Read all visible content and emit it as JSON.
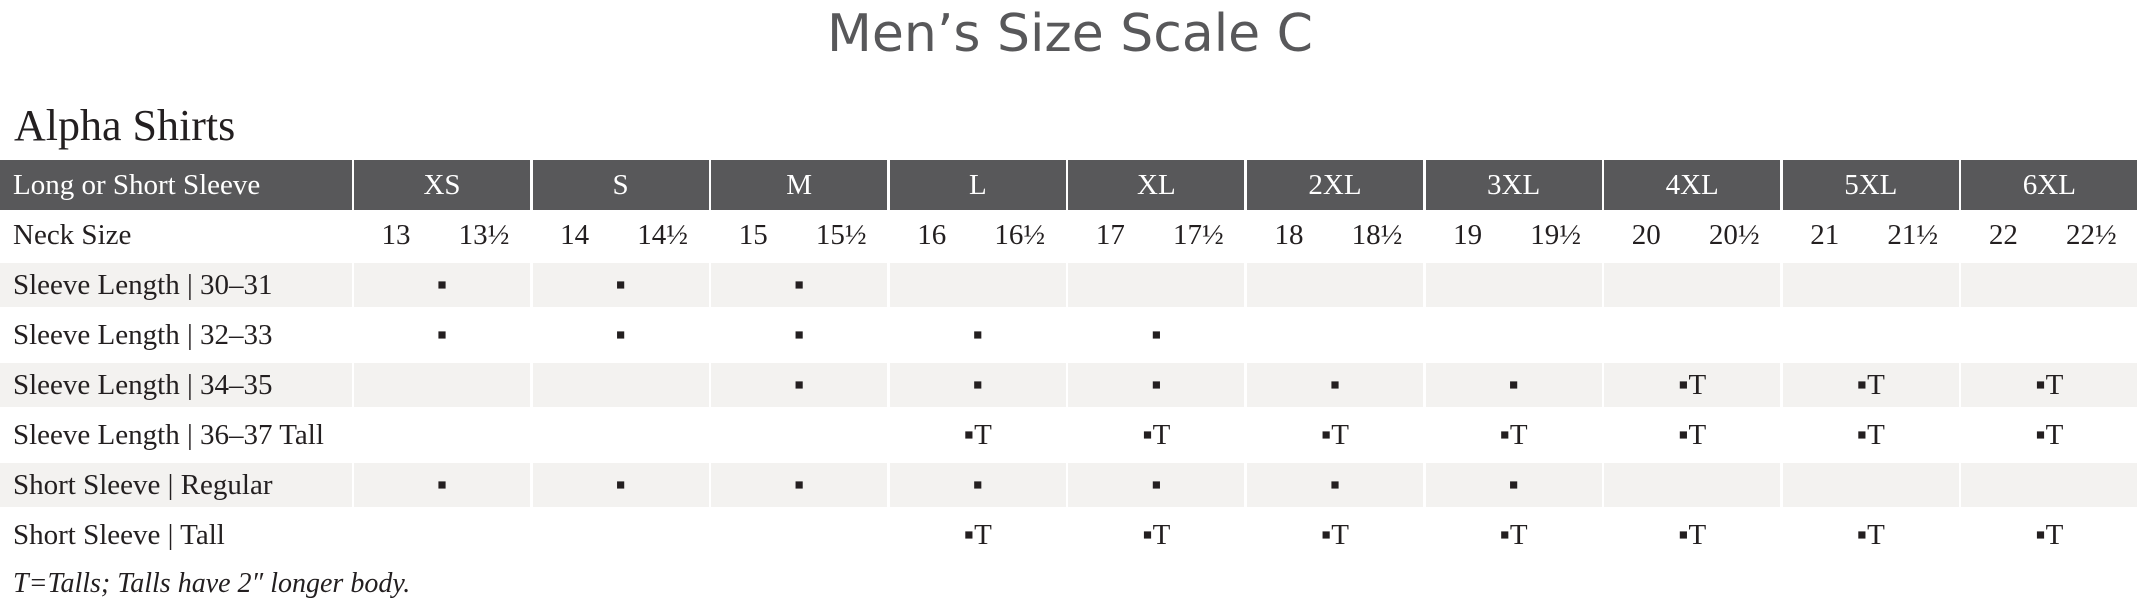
{
  "header": {
    "title": "Men’s Size Scale C"
  },
  "table": {
    "subtitle": "Alpha Shirts",
    "columns": [
      "Long or Short Sleeve",
      "XS",
      "S",
      "M",
      "L",
      "XL",
      "2XL",
      "3XL",
      "4XL",
      "5XL",
      "6XL"
    ],
    "neck": {
      "label": "Neck Size",
      "sizes": [
        [
          "13",
          "13½"
        ],
        [
          "14",
          "14½"
        ],
        [
          "15",
          "15½"
        ],
        [
          "16",
          "16½"
        ],
        [
          "17",
          "17½"
        ],
        [
          "18",
          "18½"
        ],
        [
          "19",
          "19½"
        ],
        [
          "20",
          "20½"
        ],
        [
          "21",
          "21½"
        ],
        [
          "22",
          "22½"
        ]
      ]
    },
    "rows": [
      {
        "label": "Sleeve Length | 30–31",
        "cells": [
          "▪",
          "▪",
          "▪",
          null,
          null,
          null,
          null,
          null,
          null,
          null
        ]
      },
      {
        "label": "Sleeve Length | 32–33",
        "cells": [
          "▪",
          "▪",
          "▪",
          "▪",
          "▪",
          null,
          null,
          null,
          null,
          null
        ]
      },
      {
        "label": "Sleeve Length | 34–35",
        "cells": [
          null,
          null,
          "▪",
          "▪",
          "▪",
          "▪",
          "▪",
          "▪T",
          "▪T",
          "▪T"
        ]
      },
      {
        "label": "Sleeve Length | 36–37 Tall",
        "cells": [
          null,
          null,
          null,
          "▪T",
          "▪T",
          "▪T",
          "▪T",
          "▪T",
          "▪T",
          "▪T"
        ]
      },
      {
        "label": "Short Sleeve | Regular",
        "cells": [
          "▪",
          "▪",
          "▪",
          "▪",
          "▪",
          "▪",
          "▪",
          null,
          null,
          null
        ]
      },
      {
        "label": "Short Sleeve | Tall",
        "cells": [
          null,
          null,
          null,
          "▪T",
          "▪T",
          "▪T",
          "▪T",
          "▪T",
          "▪T",
          "▪T"
        ]
      }
    ],
    "footnote": "T=Talls; Talls have 2″ longer body."
  }
}
